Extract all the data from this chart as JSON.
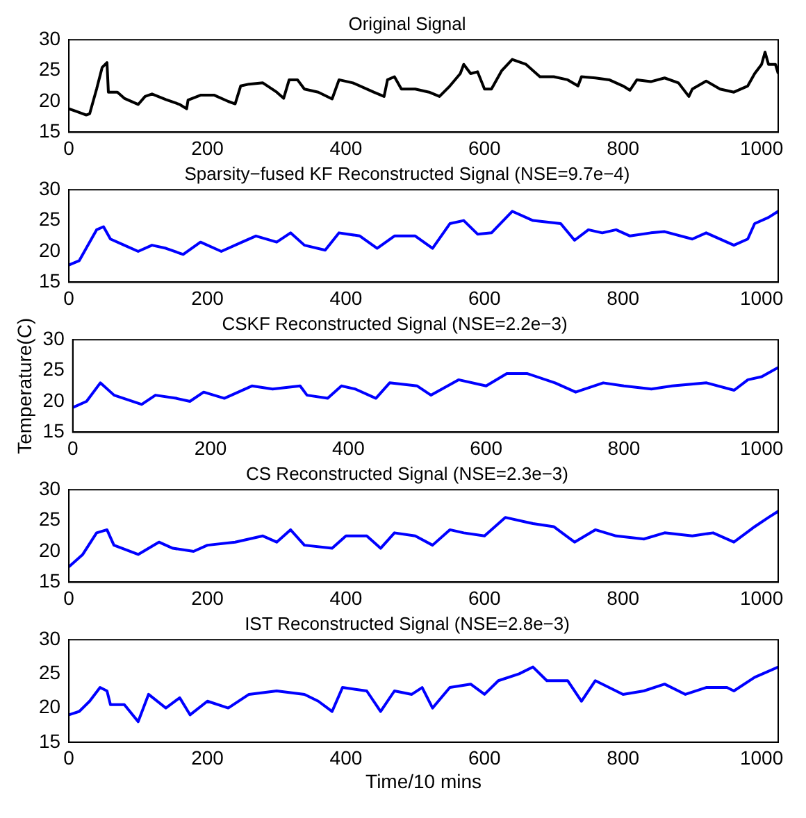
{
  "chart_data": [
    {
      "type": "line",
      "title": "Original Signal",
      "xlim": [
        0,
        1024
      ],
      "xticks": [
        0,
        200,
        400,
        600,
        800,
        1000
      ],
      "ylim": [
        15,
        30
      ],
      "yticks": [
        15,
        20,
        25,
        30
      ],
      "color": "#000000",
      "x": [
        0,
        10,
        25,
        30,
        40,
        48,
        55,
        57,
        70,
        80,
        100,
        110,
        120,
        140,
        160,
        170,
        172,
        190,
        210,
        230,
        240,
        248,
        260,
        280,
        300,
        310,
        318,
        330,
        340,
        360,
        380,
        390,
        410,
        440,
        455,
        460,
        470,
        480,
        500,
        520,
        535,
        550,
        565,
        570,
        580,
        590,
        600,
        610,
        625,
        640,
        660,
        680,
        700,
        720,
        735,
        740,
        760,
        780,
        800,
        810,
        820,
        840,
        860,
        880,
        895,
        900,
        920,
        940,
        960,
        980,
        990,
        1000,
        1005,
        1010,
        1020,
        1024
      ],
      "values": [
        18.8,
        18.4,
        17.8,
        18.0,
        22,
        25.5,
        26.3,
        21.5,
        21.5,
        20.5,
        19.5,
        20.8,
        21.2,
        20.3,
        19.5,
        18.8,
        20.2,
        21,
        21,
        20,
        19.6,
        22.5,
        22.8,
        23,
        21.5,
        20.5,
        23.5,
        23.5,
        22,
        21.5,
        20.4,
        23.5,
        23,
        21.5,
        20.8,
        23.5,
        24,
        22,
        22,
        21.5,
        20.8,
        22.5,
        24.5,
        26,
        24.5,
        24.8,
        22,
        22,
        25,
        26.8,
        26,
        24,
        24,
        23.5,
        22.5,
        24,
        23.8,
        23.5,
        22.5,
        21.8,
        23.5,
        23.2,
        23.8,
        23,
        20.8,
        22,
        23.3,
        22,
        21.5,
        22.5,
        24.5,
        26,
        28,
        26,
        26,
        24.5
      ]
    },
    {
      "type": "line",
      "title": "Sparsity−fused KF Reconstructed Signal (NSE=9.7e−4)",
      "xlim": [
        0,
        1024
      ],
      "xticks": [
        0,
        200,
        400,
        600,
        800,
        1000
      ],
      "ylim": [
        15,
        30
      ],
      "yticks": [
        15,
        20,
        25,
        30
      ],
      "color": "#0000ff",
      "x": [
        0,
        15,
        25,
        40,
        50,
        60,
        80,
        100,
        120,
        140,
        165,
        190,
        220,
        250,
        270,
        300,
        320,
        340,
        370,
        390,
        420,
        445,
        470,
        500,
        525,
        550,
        570,
        590,
        610,
        640,
        670,
        710,
        730,
        750,
        770,
        790,
        810,
        840,
        860,
        900,
        920,
        960,
        980,
        990,
        1010,
        1024
      ],
      "values": [
        17.8,
        18.5,
        20.5,
        23.5,
        24,
        22,
        21,
        20,
        21,
        20.5,
        19.5,
        21.5,
        20,
        21.5,
        22.5,
        21.5,
        23,
        21,
        20.2,
        23,
        22.5,
        20.5,
        22.5,
        22.5,
        20.5,
        24.5,
        25,
        22.8,
        23,
        26.5,
        25,
        24.5,
        21.8,
        23.5,
        23,
        23.5,
        22.5,
        23,
        23.2,
        22,
        23,
        21,
        22,
        24.5,
        25.5,
        26.5
      ]
    },
    {
      "type": "line",
      "title": "CSKF Reconstructed Signal (NSE=2.2e−3)",
      "ylabel": "Temperature(C)",
      "xlim": [
        0,
        1024
      ],
      "xticks": [
        0,
        200,
        400,
        600,
        800,
        1000
      ],
      "ylim": [
        15,
        30
      ],
      "yticks": [
        15,
        20,
        25,
        30
      ],
      "color": "#0000ff",
      "x": [
        0,
        20,
        40,
        60,
        100,
        120,
        150,
        170,
        190,
        220,
        260,
        290,
        330,
        340,
        370,
        390,
        410,
        440,
        460,
        500,
        520,
        560,
        600,
        630,
        660,
        700,
        730,
        770,
        800,
        840,
        870,
        920,
        960,
        980,
        1000,
        1024
      ],
      "values": [
        19,
        20,
        23,
        21,
        19.5,
        21,
        20.5,
        20,
        21.5,
        20.5,
        22.5,
        22,
        22.5,
        21,
        20.5,
        22.5,
        22,
        20.5,
        23,
        22.5,
        21,
        23.5,
        22.5,
        24.5,
        24.5,
        23,
        21.5,
        23,
        22.5,
        22,
        22.5,
        23,
        21.8,
        23.5,
        24,
        25.5
      ]
    },
    {
      "type": "line",
      "title": "CS Reconstructed Signal (NSE=2.3e−3)",
      "xlim": [
        0,
        1024
      ],
      "xticks": [
        0,
        200,
        400,
        600,
        800,
        1000
      ],
      "ylim": [
        15,
        30
      ],
      "yticks": [
        15,
        20,
        25,
        30
      ],
      "color": "#0000ff",
      "x": [
        0,
        20,
        40,
        55,
        65,
        100,
        130,
        150,
        180,
        200,
        240,
        280,
        300,
        320,
        340,
        380,
        400,
        430,
        450,
        470,
        500,
        525,
        550,
        570,
        600,
        630,
        670,
        700,
        730,
        760,
        790,
        830,
        860,
        900,
        930,
        960,
        990,
        1010,
        1024
      ],
      "values": [
        17.5,
        19.5,
        23,
        23.5,
        21,
        19.5,
        21.5,
        20.5,
        20,
        21,
        21.5,
        22.5,
        21.5,
        23.5,
        21,
        20.5,
        22.5,
        22.5,
        20.5,
        23,
        22.5,
        21,
        23.5,
        23,
        22.5,
        25.5,
        24.5,
        24,
        21.5,
        23.5,
        22.5,
        22,
        23,
        22.5,
        23,
        21.5,
        24,
        25.5,
        26.5
      ]
    },
    {
      "type": "line",
      "title": "IST Reconstructed Signal (NSE=2.8e−3)",
      "xlabel": "Time/10 mins",
      "xlim": [
        0,
        1024
      ],
      "xticks": [
        0,
        200,
        400,
        600,
        800,
        1000
      ],
      "ylim": [
        15,
        30
      ],
      "yticks": [
        15,
        20,
        25,
        30
      ],
      "color": "#0000ff",
      "x": [
        0,
        15,
        30,
        45,
        55,
        60,
        80,
        100,
        115,
        140,
        160,
        175,
        200,
        230,
        260,
        300,
        340,
        360,
        380,
        395,
        430,
        450,
        470,
        495,
        510,
        525,
        550,
        580,
        600,
        620,
        650,
        670,
        690,
        720,
        740,
        760,
        800,
        830,
        860,
        890,
        920,
        950,
        960,
        990,
        1024
      ],
      "values": [
        19,
        19.5,
        21,
        23,
        22.5,
        20.5,
        20.5,
        18,
        22,
        20,
        21.5,
        19,
        21,
        20,
        22,
        22.5,
        22,
        21,
        19.5,
        23,
        22.5,
        19.5,
        22.5,
        22,
        23,
        20,
        23,
        23.5,
        22,
        24,
        25,
        26,
        24,
        24,
        21,
        24,
        22,
        22.5,
        23.5,
        22,
        23,
        23,
        22.5,
        24.5,
        26
      ]
    }
  ]
}
